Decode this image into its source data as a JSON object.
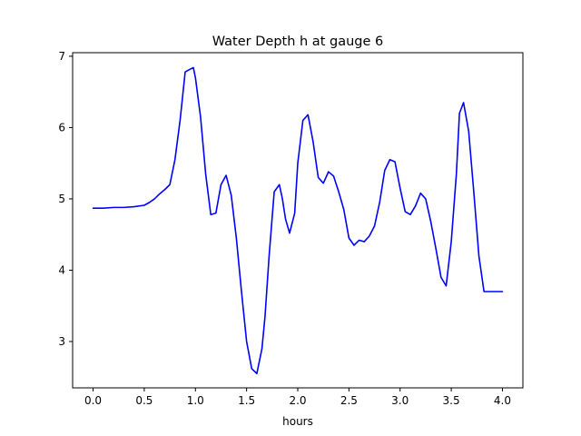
{
  "chart_data": {
    "type": "line",
    "title": "Water Depth h at gauge 6",
    "xlabel": "hours",
    "ylabel": "",
    "xlim": [
      -0.2,
      4.2
    ],
    "ylim": [
      2.35,
      7.05
    ],
    "xticks": [
      0.0,
      0.5,
      1.0,
      1.5,
      2.0,
      2.5,
      3.0,
      3.5,
      4.0
    ],
    "xtick_labels": [
      "0.0",
      "0.5",
      "1.0",
      "1.5",
      "2.0",
      "2.5",
      "3.0",
      "3.5",
      "4.0"
    ],
    "yticks": [
      3,
      4,
      5,
      6,
      7
    ],
    "ytick_labels": [
      "3",
      "4",
      "5",
      "6",
      "7"
    ],
    "grid": false,
    "legend": "none",
    "series": [
      {
        "color": "#0000ff",
        "x": [
          0.0,
          0.1,
          0.2,
          0.3,
          0.4,
          0.5,
          0.55,
          0.6,
          0.65,
          0.7,
          0.75,
          0.8,
          0.85,
          0.9,
          0.95,
          0.98,
          1.0,
          1.05,
          1.1,
          1.15,
          1.2,
          1.25,
          1.3,
          1.35,
          1.4,
          1.45,
          1.5,
          1.55,
          1.6,
          1.65,
          1.68,
          1.72,
          1.77,
          1.82,
          1.85,
          1.88,
          1.92,
          1.97,
          2.0,
          2.05,
          2.1,
          2.15,
          2.2,
          2.25,
          2.3,
          2.35,
          2.4,
          2.45,
          2.5,
          2.55,
          2.6,
          2.65,
          2.7,
          2.75,
          2.8,
          2.85,
          2.9,
          2.95,
          3.0,
          3.05,
          3.1,
          3.15,
          3.2,
          3.25,
          3.3,
          3.35,
          3.4,
          3.45,
          3.5,
          3.55,
          3.58,
          3.62,
          3.67,
          3.72,
          3.77,
          3.82,
          3.87,
          3.92,
          3.97,
          4.0
        ],
        "y": [
          4.87,
          4.87,
          4.88,
          4.88,
          4.89,
          4.91,
          4.95,
          5.0,
          5.07,
          5.13,
          5.2,
          5.55,
          6.1,
          6.78,
          6.82,
          6.84,
          6.7,
          6.15,
          5.35,
          4.78,
          4.8,
          5.2,
          5.33,
          5.05,
          4.45,
          3.7,
          3.0,
          2.62,
          2.55,
          2.9,
          3.35,
          4.2,
          5.1,
          5.2,
          5.0,
          4.72,
          4.52,
          4.8,
          5.5,
          6.1,
          6.18,
          5.8,
          5.3,
          5.22,
          5.38,
          5.32,
          5.1,
          4.85,
          4.45,
          4.35,
          4.42,
          4.4,
          4.48,
          4.62,
          4.95,
          5.4,
          5.55,
          5.52,
          5.15,
          4.82,
          4.78,
          4.9,
          5.08,
          5.0,
          4.68,
          4.3,
          3.9,
          3.78,
          4.4,
          5.35,
          6.2,
          6.35,
          5.95,
          5.1,
          4.2,
          3.7,
          3.7,
          3.7,
          3.7,
          3.7
        ]
      }
    ]
  }
}
